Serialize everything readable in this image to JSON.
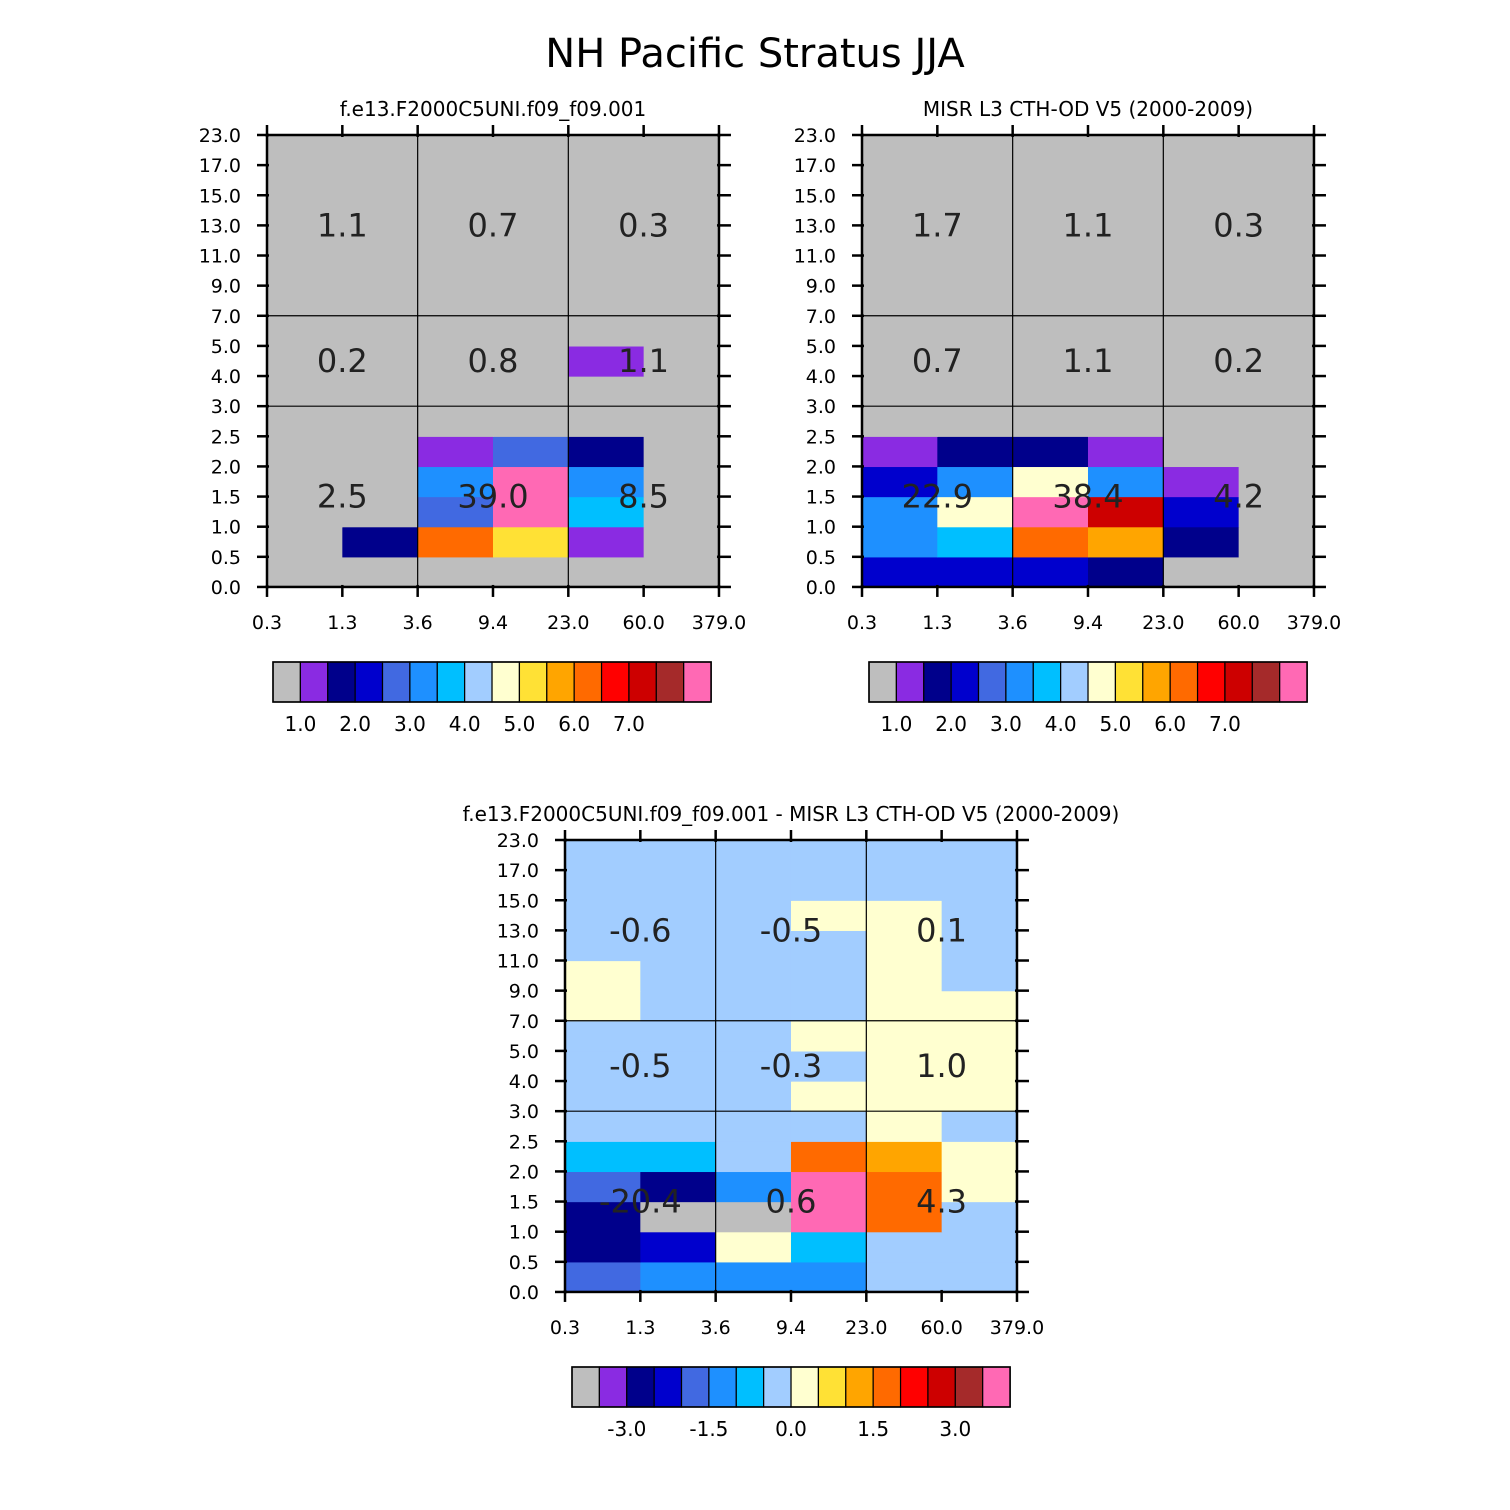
{
  "figure": {
    "title": "NH Pacific Stratus JJA"
  },
  "colors": {
    "palette": [
      "#bebebe",
      "#8a2be2",
      "#00008b",
      "#0000cd",
      "#4169e1",
      "#1e90ff",
      "#00bfff",
      "#a2cdff",
      "#ffffd0",
      "#ffe135",
      "#ffa500",
      "#ff6a00",
      "#ff0000",
      "#cd0000",
      "#a52a2a",
      "#ff69b4"
    ]
  },
  "chart_data": [
    {
      "type": "heatmap",
      "title": "f.e13.F2000C5UNI.f09_f09.001",
      "x_ticks": [
        "0.3",
        "1.3",
        "3.6",
        "9.4",
        "23.0",
        "60.0",
        "379.0"
      ],
      "y_ticks": [
        "0.0",
        "0.5",
        "1.0",
        "1.5",
        "2.0",
        "2.5",
        "3.0",
        "4.0",
        "5.0",
        "7.0",
        "9.0",
        "11.0",
        "13.0",
        "15.0",
        "17.0",
        "23.0"
      ],
      "cell_color_index": [
        [
          0,
          0,
          0,
          0,
          0,
          0
        ],
        [
          0,
          2,
          11,
          9,
          1,
          0
        ],
        [
          0,
          0,
          4,
          15,
          6,
          0
        ],
        [
          0,
          0,
          5,
          15,
          5,
          0
        ],
        [
          0,
          0,
          1,
          4,
          2,
          0
        ],
        [
          0,
          0,
          0,
          0,
          0,
          0
        ],
        [
          0,
          0,
          0,
          0,
          0,
          0
        ],
        [
          0,
          0,
          0,
          0,
          1,
          0
        ],
        [
          0,
          0,
          0,
          0,
          0,
          0
        ],
        [
          0,
          0,
          0,
          0,
          0,
          0
        ],
        [
          0,
          0,
          0,
          0,
          0,
          0
        ],
        [
          0,
          0,
          0,
          0,
          0,
          0
        ],
        [
          0,
          0,
          0,
          0,
          0,
          0
        ],
        [
          0,
          0,
          0,
          0,
          0,
          0
        ],
        [
          0,
          0,
          0,
          0,
          0,
          0
        ]
      ],
      "block_values": [
        [
          "2.5",
          "39.0",
          "8.5"
        ],
        [
          "0.2",
          "0.8",
          "1.1"
        ],
        [
          "1.1",
          "0.7",
          "0.3"
        ]
      ],
      "colorbar_labels": [
        "1.0",
        "2.0",
        "3.0",
        "4.0",
        "5.0",
        "6.0",
        "7.0"
      ]
    },
    {
      "type": "heatmap",
      "title": "MISR L3 CTH-OD V5 (2000-2009)",
      "x_ticks": [
        "0.3",
        "1.3",
        "3.6",
        "9.4",
        "23.0",
        "60.0",
        "379.0"
      ],
      "y_ticks": [
        "0.0",
        "0.5",
        "1.0",
        "1.5",
        "2.0",
        "2.5",
        "3.0",
        "4.0",
        "5.0",
        "7.0",
        "9.0",
        "11.0",
        "13.0",
        "15.0",
        "17.0",
        "23.0"
      ],
      "cell_color_index": [
        [
          3,
          3,
          3,
          2,
          0,
          0
        ],
        [
          5,
          6,
          11,
          10,
          2,
          0
        ],
        [
          5,
          8,
          15,
          13,
          3,
          0
        ],
        [
          3,
          5,
          8,
          5,
          1,
          0
        ],
        [
          1,
          2,
          2,
          1,
          0,
          0
        ],
        [
          0,
          0,
          0,
          0,
          0,
          0
        ],
        [
          0,
          0,
          0,
          0,
          0,
          0
        ],
        [
          0,
          0,
          0,
          0,
          0,
          0
        ],
        [
          0,
          0,
          0,
          0,
          0,
          0
        ],
        [
          0,
          0,
          0,
          0,
          0,
          0
        ],
        [
          0,
          0,
          0,
          0,
          0,
          0
        ],
        [
          0,
          0,
          0,
          0,
          0,
          0
        ],
        [
          0,
          0,
          0,
          0,
          0,
          0
        ],
        [
          0,
          0,
          0,
          0,
          0,
          0
        ],
        [
          0,
          0,
          0,
          0,
          0,
          0
        ]
      ],
      "block_values": [
        [
          "22.9",
          "38.4",
          "4.2"
        ],
        [
          "0.7",
          "1.1",
          "0.2"
        ],
        [
          "1.7",
          "1.1",
          "0.3"
        ]
      ],
      "colorbar_labels": [
        "1.0",
        "2.0",
        "3.0",
        "4.0",
        "5.0",
        "6.0",
        "7.0"
      ]
    },
    {
      "type": "heatmap",
      "title": "f.e13.F2000C5UNI.f09_f09.001 - MISR L3 CTH-OD V5 (2000-2009)",
      "x_ticks": [
        "0.3",
        "1.3",
        "3.6",
        "9.4",
        "23.0",
        "60.0",
        "379.0"
      ],
      "y_ticks": [
        "0.0",
        "0.5",
        "1.0",
        "1.5",
        "2.0",
        "2.5",
        "3.0",
        "4.0",
        "5.0",
        "7.0",
        "9.0",
        "11.0",
        "13.0",
        "15.0",
        "17.0",
        "23.0"
      ],
      "cell_color_index": [
        [
          4,
          5,
          5,
          5,
          7,
          7
        ],
        [
          2,
          3,
          8,
          6,
          7,
          7
        ],
        [
          2,
          0,
          0,
          15,
          11,
          7
        ],
        [
          4,
          2,
          5,
          15,
          11,
          8
        ],
        [
          6,
          6,
          7,
          11,
          10,
          8
        ],
        [
          7,
          7,
          7,
          7,
          8,
          7
        ],
        [
          7,
          7,
          7,
          8,
          8,
          8
        ],
        [
          7,
          7,
          7,
          7,
          8,
          8
        ],
        [
          7,
          7,
          7,
          8,
          8,
          8
        ],
        [
          8,
          7,
          7,
          7,
          8,
          8
        ],
        [
          8,
          7,
          7,
          7,
          8,
          7
        ],
        [
          7,
          7,
          7,
          7,
          8,
          7
        ],
        [
          7,
          7,
          7,
          8,
          8,
          7
        ],
        [
          7,
          7,
          7,
          7,
          7,
          7
        ],
        [
          7,
          7,
          7,
          7,
          7,
          7
        ]
      ],
      "block_values": [
        [
          "-20.4",
          "0.6",
          "4.3"
        ],
        [
          "-0.5",
          "-0.3",
          "1.0"
        ],
        [
          "-0.6",
          "-0.5",
          "0.1"
        ]
      ],
      "colorbar_labels": [
        "-3.0",
        "-1.5",
        "0.0",
        "1.5",
        "3.0"
      ]
    }
  ]
}
